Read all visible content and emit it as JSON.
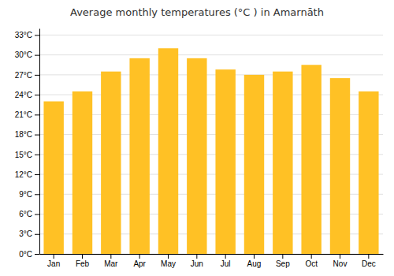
{
  "chart_data": {
    "type": "bar",
    "title": "Average monthly temperatures (°C ) in Amarnāth",
    "categories": [
      "Jan",
      "Feb",
      "Mar",
      "Apr",
      "May",
      "Jun",
      "Jul",
      "Aug",
      "Sep",
      "Oct",
      "Nov",
      "Dec"
    ],
    "values": [
      23.0,
      24.5,
      27.5,
      29.5,
      31.0,
      29.5,
      27.8,
      27.0,
      27.5,
      28.5,
      26.5,
      24.5
    ],
    "color": "#FFC125",
    "ylim": [
      0,
      34
    ],
    "yticks": [
      {
        "value": 0,
        "label": "0°C"
      },
      {
        "value": 3,
        "label": "3°C"
      },
      {
        "value": 6,
        "label": "6°C"
      },
      {
        "value": 9,
        "label": "9°C"
      },
      {
        "value": 12,
        "label": "12°C"
      },
      {
        "value": 15,
        "label": "15°C"
      },
      {
        "value": 18,
        "label": "18°C"
      },
      {
        "value": 21,
        "label": "21°C"
      },
      {
        "value": 24,
        "label": "24°C"
      },
      {
        "value": 27,
        "label": "27°C"
      },
      {
        "value": 30,
        "label": "30°C"
      },
      {
        "value": 33,
        "label": "33°C"
      }
    ],
    "grid": true
  }
}
